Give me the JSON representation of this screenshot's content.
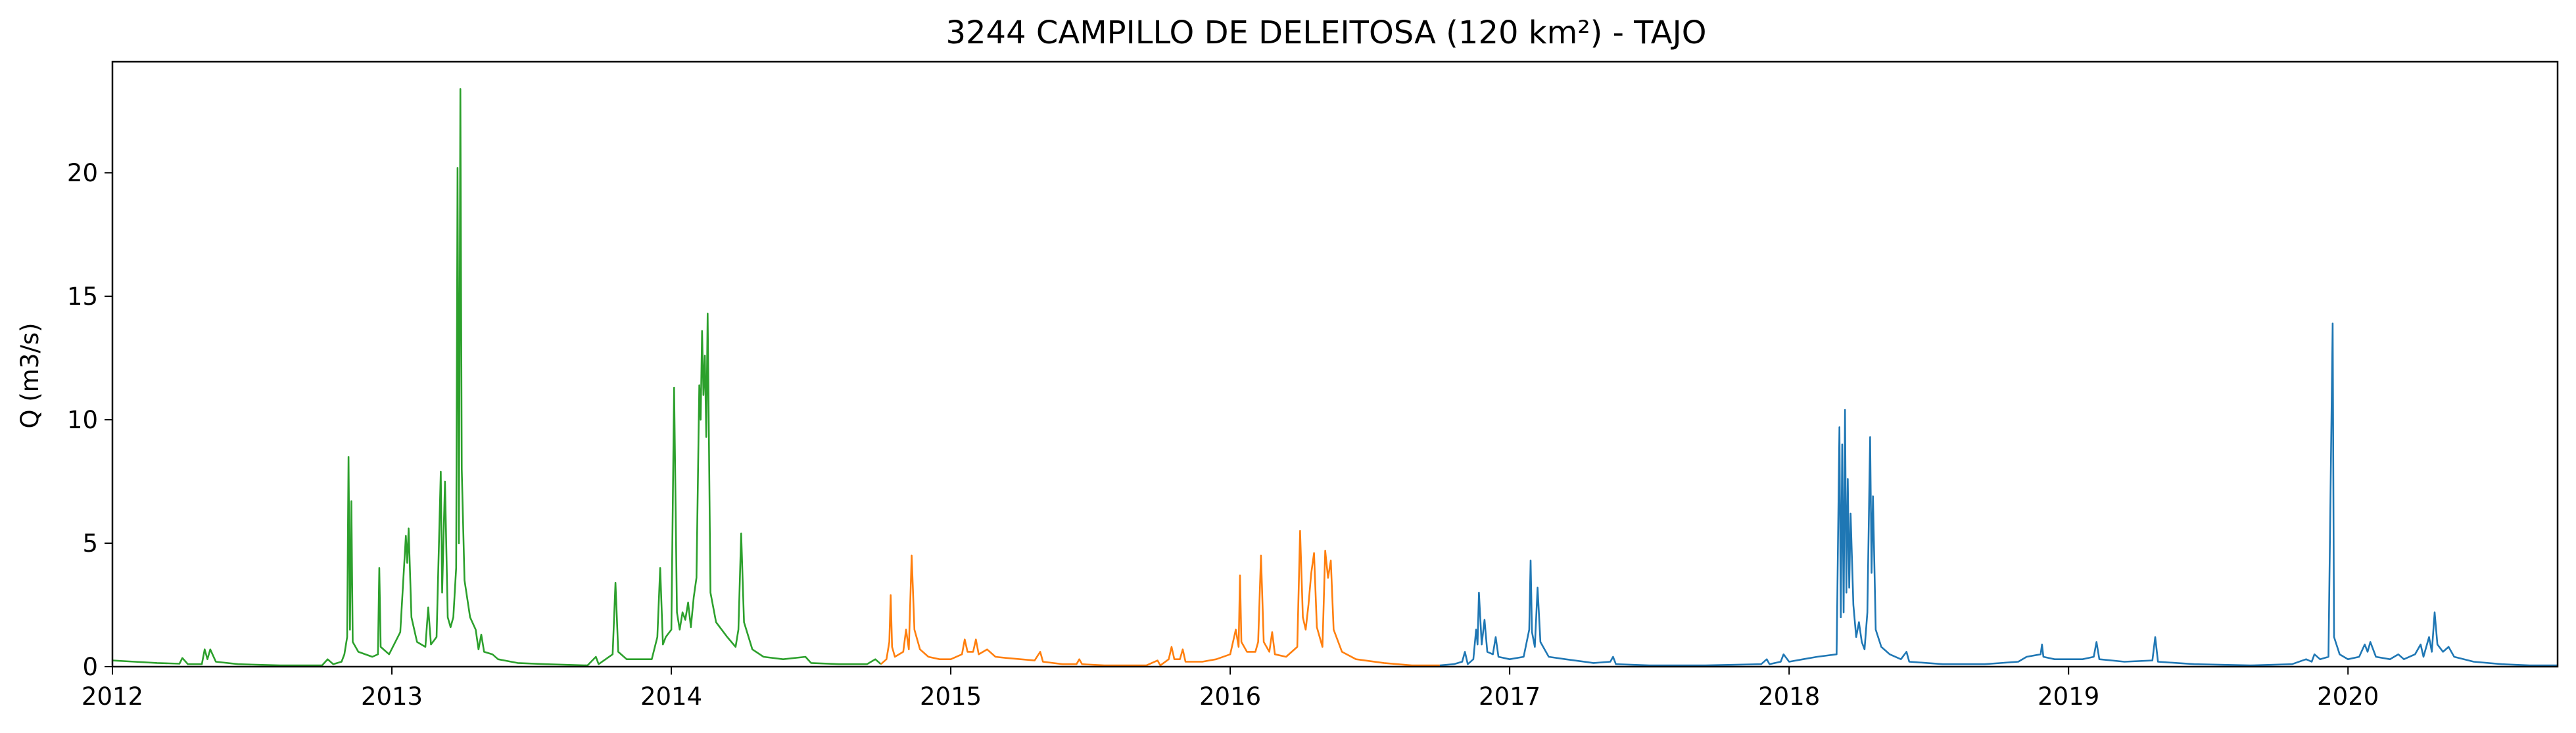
{
  "chart_data": {
    "type": "line",
    "title": "3244 CAMPILLO DE DELEITOSA (120 km²) - TAJO",
    "xlabel": "",
    "ylabel": "Q (m3/s)",
    "x_ticks": [
      "2012",
      "2013",
      "2014",
      "2015",
      "2016",
      "2017",
      "2018",
      "2019",
      "2020"
    ],
    "y_ticks": [
      "0",
      "5",
      "10",
      "15",
      "20"
    ],
    "xlim": [
      2012.0,
      2020.75
    ],
    "ylim": [
      0,
      24.5
    ],
    "grid": false,
    "legend": "none",
    "series": [
      {
        "color": "#2ca02c",
        "points": [
          [
            2012.0,
            0.25
          ],
          [
            2012.08,
            0.2
          ],
          [
            2012.16,
            0.15
          ],
          [
            2012.24,
            0.12
          ],
          [
            2012.25,
            0.35
          ],
          [
            2012.27,
            0.1
          ],
          [
            2012.32,
            0.1
          ],
          [
            2012.33,
            0.7
          ],
          [
            2012.34,
            0.3
          ],
          [
            2012.35,
            0.7
          ],
          [
            2012.37,
            0.2
          ],
          [
            2012.45,
            0.1
          ],
          [
            2012.6,
            0.05
          ],
          [
            2012.75,
            0.05
          ],
          [
            2012.77,
            0.3
          ],
          [
            2012.79,
            0.1
          ],
          [
            2012.82,
            0.2
          ],
          [
            2012.83,
            0.5
          ],
          [
            2012.84,
            1.2
          ],
          [
            2012.845,
            8.5
          ],
          [
            2012.85,
            1.5
          ],
          [
            2012.855,
            6.7
          ],
          [
            2012.86,
            1.0
          ],
          [
            2012.88,
            0.6
          ],
          [
            2012.93,
            0.4
          ],
          [
            2012.95,
            0.5
          ],
          [
            2012.955,
            4.0
          ],
          [
            2012.96,
            0.8
          ],
          [
            2012.99,
            0.5
          ],
          [
            2013.03,
            1.4
          ],
          [
            2013.05,
            5.3
          ],
          [
            2013.055,
            4.2
          ],
          [
            2013.06,
            5.6
          ],
          [
            2013.07,
            2.0
          ],
          [
            2013.09,
            1.0
          ],
          [
            2013.12,
            0.8
          ],
          [
            2013.13,
            2.4
          ],
          [
            2013.14,
            0.9
          ],
          [
            2013.16,
            1.2
          ],
          [
            2013.175,
            7.9
          ],
          [
            2013.18,
            3.0
          ],
          [
            2013.19,
            7.5
          ],
          [
            2013.2,
            2.0
          ],
          [
            2013.21,
            1.6
          ],
          [
            2013.22,
            2.0
          ],
          [
            2013.23,
            4.0
          ],
          [
            2013.235,
            20.2
          ],
          [
            2013.24,
            5.0
          ],
          [
            2013.245,
            23.4
          ],
          [
            2013.25,
            8.0
          ],
          [
            2013.26,
            3.5
          ],
          [
            2013.28,
            2.0
          ],
          [
            2013.3,
            1.5
          ],
          [
            2013.31,
            0.7
          ],
          [
            2013.32,
            1.3
          ],
          [
            2013.33,
            0.6
          ],
          [
            2013.36,
            0.5
          ],
          [
            2013.38,
            0.3
          ],
          [
            2013.45,
            0.15
          ],
          [
            2013.55,
            0.1
          ],
          [
            2013.7,
            0.05
          ],
          [
            2013.73,
            0.4
          ],
          [
            2013.74,
            0.1
          ],
          [
            2013.79,
            0.5
          ],
          [
            2013.8,
            3.4
          ],
          [
            2013.81,
            0.6
          ],
          [
            2013.84,
            0.3
          ],
          [
            2013.93,
            0.3
          ],
          [
            2013.95,
            1.2
          ],
          [
            2013.96,
            4.0
          ],
          [
            2013.97,
            0.9
          ],
          [
            2013.98,
            1.2
          ],
          [
            2014.0,
            1.5
          ],
          [
            2014.01,
            11.3
          ],
          [
            2014.02,
            2.2
          ],
          [
            2014.03,
            1.5
          ],
          [
            2014.04,
            2.2
          ],
          [
            2014.05,
            1.9
          ],
          [
            2014.06,
            2.6
          ],
          [
            2014.07,
            1.6
          ],
          [
            2014.08,
            2.8
          ],
          [
            2014.09,
            3.6
          ],
          [
            2014.1,
            11.4
          ],
          [
            2014.105,
            10.0
          ],
          [
            2014.11,
            13.6
          ],
          [
            2014.115,
            11.0
          ],
          [
            2014.12,
            12.6
          ],
          [
            2014.125,
            9.3
          ],
          [
            2014.13,
            14.3
          ],
          [
            2014.14,
            3.0
          ],
          [
            2014.16,
            1.8
          ],
          [
            2014.2,
            1.2
          ],
          [
            2014.23,
            0.8
          ],
          [
            2014.24,
            1.5
          ],
          [
            2014.25,
            5.4
          ],
          [
            2014.26,
            1.8
          ],
          [
            2014.29,
            0.7
          ],
          [
            2014.33,
            0.4
          ],
          [
            2014.4,
            0.3
          ],
          [
            2014.48,
            0.4
          ],
          [
            2014.5,
            0.15
          ],
          [
            2014.6,
            0.1
          ],
          [
            2014.7,
            0.1
          ],
          [
            2014.73,
            0.3
          ],
          [
            2014.75,
            0.1
          ]
        ]
      },
      {
        "color": "#ff7f0e",
        "points": [
          [
            2014.75,
            0.1
          ],
          [
            2014.77,
            0.3
          ],
          [
            2014.78,
            1.0
          ],
          [
            2014.785,
            2.9
          ],
          [
            2014.79,
            0.8
          ],
          [
            2014.8,
            0.4
          ],
          [
            2014.83,
            0.6
          ],
          [
            2014.84,
            1.5
          ],
          [
            2014.85,
            0.7
          ],
          [
            2014.86,
            4.5
          ],
          [
            2014.87,
            1.5
          ],
          [
            2014.89,
            0.7
          ],
          [
            2014.92,
            0.4
          ],
          [
            2014.96,
            0.3
          ],
          [
            2015.0,
            0.3
          ],
          [
            2015.04,
            0.5
          ],
          [
            2015.05,
            1.1
          ],
          [
            2015.06,
            0.6
          ],
          [
            2015.08,
            0.6
          ],
          [
            2015.09,
            1.1
          ],
          [
            2015.1,
            0.5
          ],
          [
            2015.13,
            0.7
          ],
          [
            2015.16,
            0.4
          ],
          [
            2015.2,
            0.35
          ],
          [
            2015.25,
            0.3
          ],
          [
            2015.3,
            0.25
          ],
          [
            2015.32,
            0.6
          ],
          [
            2015.33,
            0.2
          ],
          [
            2015.4,
            0.1
          ],
          [
            2015.45,
            0.1
          ],
          [
            2015.46,
            0.3
          ],
          [
            2015.47,
            0.1
          ],
          [
            2015.55,
            0.05
          ],
          [
            2015.7,
            0.05
          ],
          [
            2015.74,
            0.25
          ],
          [
            2015.75,
            0.05
          ],
          [
            2015.78,
            0.3
          ],
          [
            2015.79,
            0.8
          ],
          [
            2015.8,
            0.3
          ],
          [
            2015.82,
            0.3
          ],
          [
            2015.83,
            0.7
          ],
          [
            2015.84,
            0.2
          ],
          [
            2015.9,
            0.2
          ],
          [
            2015.95,
            0.3
          ],
          [
            2016.0,
            0.5
          ],
          [
            2016.02,
            1.5
          ],
          [
            2016.03,
            0.8
          ],
          [
            2016.035,
            3.7
          ],
          [
            2016.04,
            1.0
          ],
          [
            2016.06,
            0.6
          ],
          [
            2016.09,
            0.6
          ],
          [
            2016.1,
            1.0
          ],
          [
            2016.11,
            4.5
          ],
          [
            2016.12,
            1.0
          ],
          [
            2016.14,
            0.6
          ],
          [
            2016.15,
            1.4
          ],
          [
            2016.16,
            0.5
          ],
          [
            2016.2,
            0.4
          ],
          [
            2016.24,
            0.8
          ],
          [
            2016.25,
            5.5
          ],
          [
            2016.26,
            2.0
          ],
          [
            2016.27,
            1.5
          ],
          [
            2016.28,
            2.5
          ],
          [
            2016.29,
            3.8
          ],
          [
            2016.3,
            4.6
          ],
          [
            2016.31,
            1.6
          ],
          [
            2016.33,
            0.8
          ],
          [
            2016.34,
            4.7
          ],
          [
            2016.35,
            3.6
          ],
          [
            2016.36,
            4.3
          ],
          [
            2016.37,
            1.5
          ],
          [
            2016.4,
            0.6
          ],
          [
            2016.45,
            0.3
          ],
          [
            2016.55,
            0.15
          ],
          [
            2016.65,
            0.05
          ],
          [
            2016.75,
            0.05
          ]
        ]
      },
      {
        "color": "#1f77b4",
        "points": [
          [
            2016.75,
            0.05
          ],
          [
            2016.8,
            0.1
          ],
          [
            2016.83,
            0.2
          ],
          [
            2016.84,
            0.6
          ],
          [
            2016.85,
            0.1
          ],
          [
            2016.87,
            0.3
          ],
          [
            2016.88,
            1.5
          ],
          [
            2016.885,
            0.9
          ],
          [
            2016.89,
            3.0
          ],
          [
            2016.9,
            0.9
          ],
          [
            2016.91,
            1.9
          ],
          [
            2016.92,
            0.6
          ],
          [
            2016.94,
            0.5
          ],
          [
            2016.95,
            1.2
          ],
          [
            2016.96,
            0.4
          ],
          [
            2017.0,
            0.3
          ],
          [
            2017.05,
            0.4
          ],
          [
            2017.07,
            1.5
          ],
          [
            2017.075,
            4.3
          ],
          [
            2017.08,
            1.4
          ],
          [
            2017.09,
            0.8
          ],
          [
            2017.1,
            3.2
          ],
          [
            2017.11,
            1.0
          ],
          [
            2017.14,
            0.4
          ],
          [
            2017.2,
            0.3
          ],
          [
            2017.3,
            0.15
          ],
          [
            2017.36,
            0.2
          ],
          [
            2017.37,
            0.4
          ],
          [
            2017.38,
            0.1
          ],
          [
            2017.5,
            0.05
          ],
          [
            2017.7,
            0.05
          ],
          [
            2017.9,
            0.1
          ],
          [
            2017.92,
            0.3
          ],
          [
            2017.93,
            0.1
          ],
          [
            2017.97,
            0.2
          ],
          [
            2017.98,
            0.5
          ],
          [
            2018.0,
            0.2
          ],
          [
            2018.05,
            0.3
          ],
          [
            2018.1,
            0.4
          ],
          [
            2018.17,
            0.5
          ],
          [
            2018.18,
            9.7
          ],
          [
            2018.185,
            2.0
          ],
          [
            2018.19,
            9.0
          ],
          [
            2018.195,
            2.2
          ],
          [
            2018.2,
            10.4
          ],
          [
            2018.205,
            3.0
          ],
          [
            2018.21,
            7.6
          ],
          [
            2018.215,
            3.2
          ],
          [
            2018.22,
            6.2
          ],
          [
            2018.23,
            2.5
          ],
          [
            2018.24,
            1.2
          ],
          [
            2018.25,
            1.8
          ],
          [
            2018.26,
            1.0
          ],
          [
            2018.27,
            0.7
          ],
          [
            2018.28,
            2.2
          ],
          [
            2018.29,
            9.3
          ],
          [
            2018.295,
            3.8
          ],
          [
            2018.3,
            6.9
          ],
          [
            2018.31,
            1.5
          ],
          [
            2018.33,
            0.8
          ],
          [
            2018.36,
            0.5
          ],
          [
            2018.4,
            0.3
          ],
          [
            2018.42,
            0.6
          ],
          [
            2018.43,
            0.2
          ],
          [
            2018.55,
            0.1
          ],
          [
            2018.7,
            0.1
          ],
          [
            2018.82,
            0.2
          ],
          [
            2018.85,
            0.4
          ],
          [
            2018.9,
            0.5
          ],
          [
            2018.905,
            0.9
          ],
          [
            2018.91,
            0.4
          ],
          [
            2018.95,
            0.3
          ],
          [
            2019.0,
            0.3
          ],
          [
            2019.05,
            0.3
          ],
          [
            2019.09,
            0.4
          ],
          [
            2019.1,
            1.0
          ],
          [
            2019.11,
            0.3
          ],
          [
            2019.2,
            0.2
          ],
          [
            2019.3,
            0.25
          ],
          [
            2019.31,
            1.2
          ],
          [
            2019.32,
            0.2
          ],
          [
            2019.45,
            0.1
          ],
          [
            2019.65,
            0.05
          ],
          [
            2019.8,
            0.1
          ],
          [
            2019.85,
            0.3
          ],
          [
            2019.87,
            0.2
          ],
          [
            2019.88,
            0.5
          ],
          [
            2019.9,
            0.3
          ],
          [
            2019.93,
            0.4
          ],
          [
            2019.945,
            13.9
          ],
          [
            2019.95,
            1.2
          ],
          [
            2019.97,
            0.5
          ],
          [
            2020.0,
            0.3
          ],
          [
            2020.04,
            0.4
          ],
          [
            2020.06,
            0.9
          ],
          [
            2020.07,
            0.6
          ],
          [
            2020.08,
            1.0
          ],
          [
            2020.1,
            0.4
          ],
          [
            2020.15,
            0.3
          ],
          [
            2020.18,
            0.5
          ],
          [
            2020.2,
            0.3
          ],
          [
            2020.24,
            0.5
          ],
          [
            2020.26,
            0.9
          ],
          [
            2020.27,
            0.4
          ],
          [
            2020.29,
            1.2
          ],
          [
            2020.3,
            0.6
          ],
          [
            2020.31,
            2.2
          ],
          [
            2020.32,
            0.9
          ],
          [
            2020.34,
            0.6
          ],
          [
            2020.36,
            0.8
          ],
          [
            2020.38,
            0.4
          ],
          [
            2020.45,
            0.2
          ],
          [
            2020.55,
            0.1
          ],
          [
            2020.65,
            0.05
          ],
          [
            2020.75,
            0.05
          ]
        ]
      }
    ]
  }
}
